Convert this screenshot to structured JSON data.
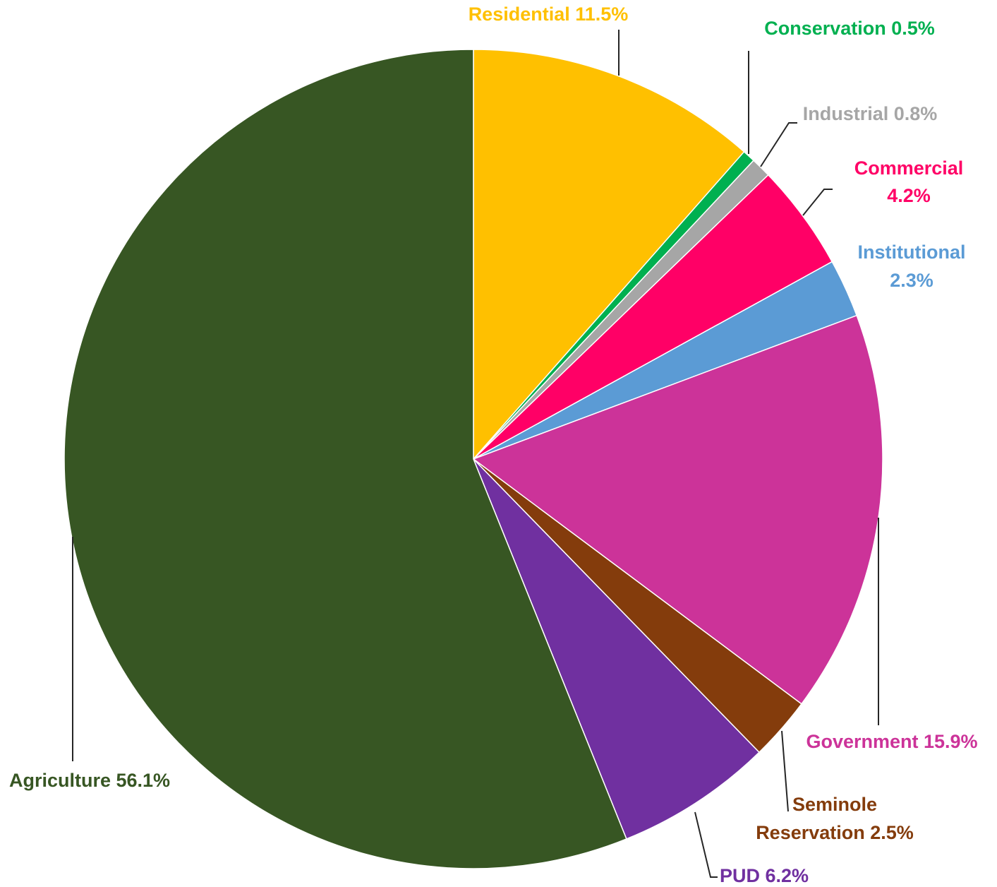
{
  "chart_data": {
    "type": "pie",
    "start_angle_deg": 0,
    "direction": "clockwise",
    "slices": [
      {
        "name": "Residential",
        "label_lines": [
          "Residential 11.5%"
        ],
        "value": 11.5,
        "color": "#FFC000"
      },
      {
        "name": "Conservation",
        "label_lines": [
          "Conservation 0.5%"
        ],
        "value": 0.5,
        "color": "#00B050"
      },
      {
        "name": "Industrial",
        "label_lines": [
          "Industrial 0.8%"
        ],
        "value": 0.8,
        "color": "#A6A6A6"
      },
      {
        "name": "Commercial",
        "label_lines": [
          "Commercial",
          "4.2%"
        ],
        "value": 4.2,
        "color": "#FF0066"
      },
      {
        "name": "Institutional",
        "label_lines": [
          "Institutional",
          "2.3%"
        ],
        "value": 2.3,
        "color": "#5B9BD5"
      },
      {
        "name": "Government",
        "label_lines": [
          "Government 15.9%"
        ],
        "value": 15.9,
        "color": "#CC3399"
      },
      {
        "name": "Seminole Reservation",
        "label_lines": [
          "Seminole",
          "Reservation 2.5%"
        ],
        "value": 2.5,
        "color": "#843C0C"
      },
      {
        "name": "PUD",
        "label_lines": [
          "PUD 6.2%"
        ],
        "value": 6.2,
        "color": "#7030A0"
      },
      {
        "name": "Agriculture",
        "label_lines": [
          "Agriculture 56.1%"
        ],
        "value": 56.1,
        "color": "#375623"
      }
    ]
  }
}
